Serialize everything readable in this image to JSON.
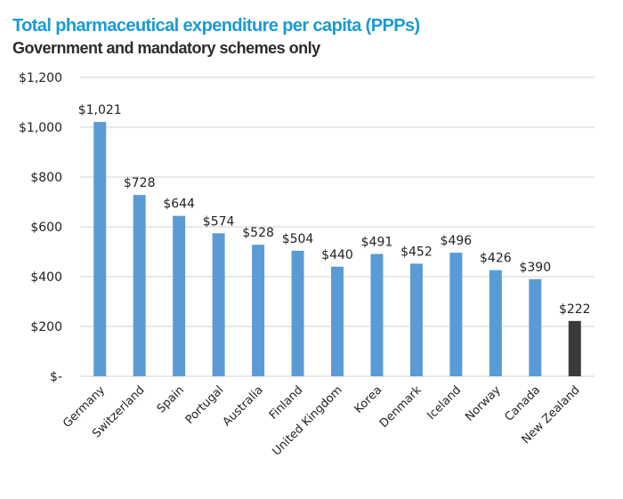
{
  "chart_data": {
    "type": "bar",
    "title": "Total pharmaceutical expenditure per capita (PPPs)",
    "subtitle": "Government and mandatory schemes only",
    "xlabel": "",
    "ylabel": "",
    "ylim": [
      0,
      1200
    ],
    "yticks": [
      0,
      200,
      400,
      600,
      800,
      1000,
      1200
    ],
    "ytick_labels": [
      "$-",
      "$200",
      "$400",
      "$600",
      "$800",
      "$1,000",
      "$1,200"
    ],
    "grid": true,
    "legend": "none",
    "categories": [
      "Germany",
      "Switzerland",
      "Spain",
      "Portugal",
      "Australia",
      "Finland",
      "United Kingdom",
      "Korea",
      "Denmark",
      "Iceland",
      "Norway",
      "Canada",
      "New Zealand"
    ],
    "values": [
      1021,
      728,
      644,
      574,
      528,
      504,
      440,
      491,
      452,
      496,
      426,
      390,
      222
    ],
    "data_labels": [
      "$1,021",
      "$728",
      "$644",
      "$574",
      "$528",
      "$504",
      "$440",
      "$491",
      "$452",
      "$496",
      "$426",
      "$390",
      "$222"
    ],
    "colors": {
      "default_bar": "#5b9bd5",
      "highlight_bar": "#3a3a3c",
      "highlight_category": "New Zealand",
      "title": "#1a9ad6",
      "subtitle": "#2b2b2b",
      "grid": "#d9d9d9"
    }
  }
}
